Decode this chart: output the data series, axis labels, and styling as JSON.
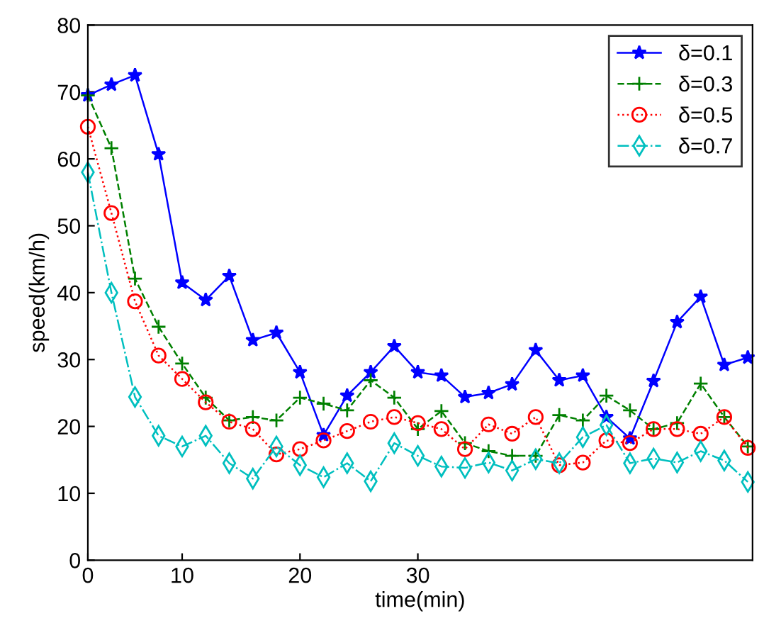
{
  "chart_data": {
    "type": "line",
    "xlabel": "time(min)",
    "ylabel": "speed(km/h)",
    "categories": [
      "0",
      null,
      null,
      null,
      "10",
      null,
      null,
      null,
      null,
      "20",
      null,
      null,
      null,
      null,
      "30",
      null,
      null,
      null,
      null,
      null,
      null,
      null,
      null,
      null,
      null,
      null,
      null,
      null,
      null
    ],
    "ylim": [
      0,
      80
    ],
    "yticks": [
      0,
      10,
      20,
      30,
      40,
      50,
      60,
      70,
      80
    ],
    "grid": false,
    "legend": "top right",
    "series": [
      {
        "name": "δ=0.1",
        "color": "#0000ff",
        "marker": "star",
        "line_style": "solid",
        "values": [
          69.5,
          71.1,
          72.5,
          60.7,
          41.5,
          38.9,
          42.5,
          32.9,
          34,
          28.1,
          18.7,
          24.6,
          28.1,
          32,
          28.1,
          27.6,
          24.4,
          25,
          26.3,
          31.4,
          26.9,
          27.6,
          21.4,
          18.2,
          26.8,
          35.6,
          39.4,
          29.2,
          30.3
        ]
      },
      {
        "name": "δ=0.3",
        "color": "#008000",
        "marker": "cross",
        "line_style": "dashed",
        "values": [
          69.5,
          61.6,
          42.1,
          34.9,
          29.4,
          24.3,
          20.9,
          21.4,
          20.9,
          24.3,
          23.4,
          22.4,
          26.9,
          24.3,
          19.6,
          22.3,
          17.5,
          16.3,
          15.6,
          15.6,
          21.7,
          20.9,
          24.6,
          22.4,
          19.6,
          20.5,
          26.4,
          21.4,
          17
        ]
      },
      {
        "name": "δ=0.5",
        "color": "#ff0000",
        "marker": "circle",
        "line_style": "dotted",
        "values": [
          64.8,
          51.9,
          38.7,
          30.6,
          27.1,
          23.6,
          20.7,
          19.6,
          15.8,
          16.6,
          17.9,
          19.3,
          20.7,
          21.4,
          20.5,
          19.6,
          16.6,
          20.3,
          18.9,
          21.4,
          14.2,
          14.6,
          17.9,
          17.5,
          19.6,
          19.6,
          18.9,
          21.4,
          16.8
        ]
      },
      {
        "name": "δ=0.7",
        "color": "#00bfbf",
        "marker": "diamond",
        "line_style": "dashdot",
        "values": [
          58,
          40,
          24.4,
          18.6,
          17,
          18.6,
          14.5,
          12.2,
          17,
          14.2,
          12.4,
          14.5,
          11.8,
          17.5,
          15.6,
          14,
          13.8,
          14.6,
          13.4,
          15.1,
          14.5,
          18.4,
          20.2,
          14.5,
          15.2,
          14.6,
          16.3,
          14.9,
          11.7
        ]
      }
    ]
  }
}
